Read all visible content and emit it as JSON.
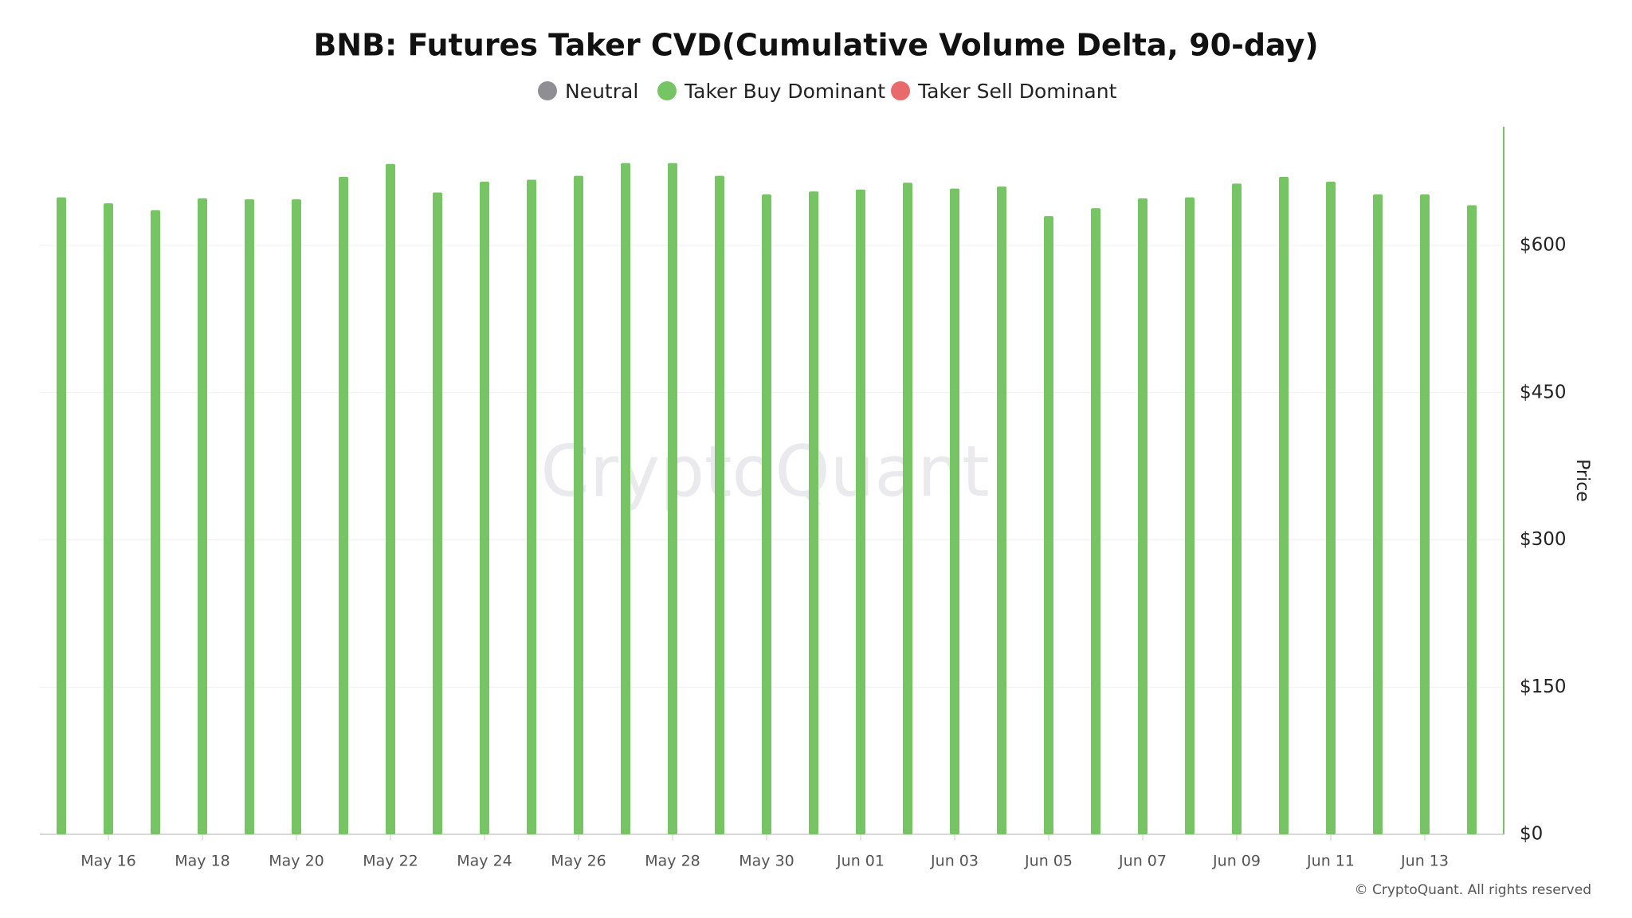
{
  "chart_data": {
    "type": "bar",
    "title": "BNB: Futures Taker CVD(Cumulative Volume Delta, 90-day)",
    "legend": [
      {
        "name": "Neutral",
        "color": "#8e8e93"
      },
      {
        "name": "Taker Buy Dominant",
        "color": "#77c464"
      },
      {
        "name": "Taker Sell Dominant",
        "color": "#e86a6a"
      }
    ],
    "categories": [
      null,
      "May 16",
      null,
      "May 18",
      null,
      "May 20",
      null,
      "May 22",
      null,
      "May 24",
      null,
      "May 26",
      null,
      "May 28",
      null,
      "May 30",
      null,
      "Jun 01",
      null,
      "Jun 03",
      null,
      "Jun 05",
      null,
      "Jun 07",
      null,
      "Jun 09",
      null,
      "Jun 11",
      null,
      "Jun 13",
      null
    ],
    "values": [
      649,
      643,
      636,
      648,
      647,
      647,
      670,
      683,
      654,
      665,
      667,
      671,
      684,
      684,
      671,
      652,
      655,
      657,
      664,
      658,
      660,
      630,
      638,
      648,
      649,
      663,
      670,
      665,
      652,
      652,
      641
    ],
    "color": "#77c464",
    "y_axis_label": "Price",
    "ylim": [
      0,
      721
    ],
    "yticks": [
      {
        "value": 0,
        "label": "$0"
      },
      {
        "value": 150,
        "label": "$150"
      },
      {
        "value": 300,
        "label": "$300"
      },
      {
        "value": 450,
        "label": "$450"
      },
      {
        "value": 600,
        "label": "$600"
      }
    ],
    "grid": true,
    "watermark": "CryptoQuant",
    "copyright": "© CryptoQuant. All rights reserved"
  }
}
